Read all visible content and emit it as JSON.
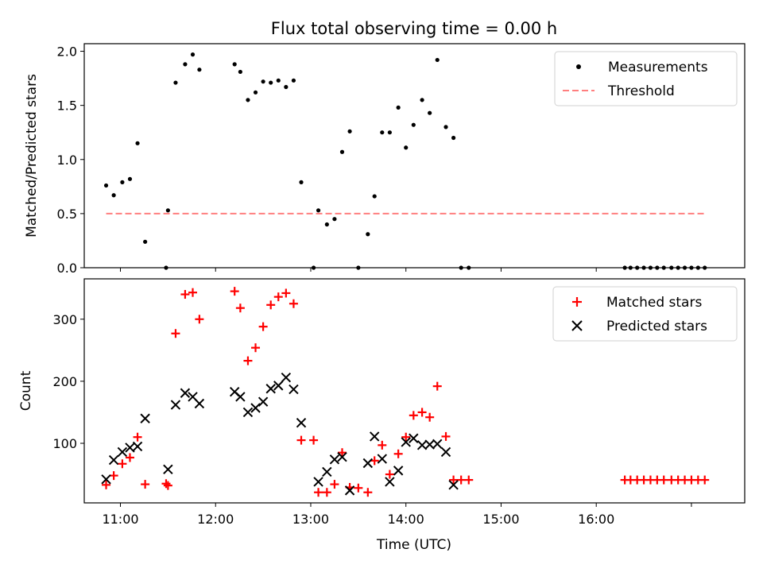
{
  "chart_data": [
    {
      "type": "scatter",
      "panel": "top",
      "title": "Flux total observing time = 0.00 h",
      "xlabel": "",
      "ylabel": "Matched/Predicted stars",
      "xlim": [
        10.62,
        17.56
      ],
      "ylim": [
        0,
        2.07
      ],
      "y_ticks": [
        0.0,
        0.5,
        1.0,
        1.5,
        2.0
      ],
      "y_tick_labels": [
        "0.0",
        "0.5",
        "1.0",
        "1.5",
        "2.0"
      ],
      "x_ticks": [
        11,
        12,
        13,
        14,
        15,
        16
      ],
      "legend_position": "upper right",
      "series": [
        {
          "name": "Measurements",
          "marker": "dot",
          "color": "#000000",
          "points": [
            [
              10.85,
              0.76
            ],
            [
              10.93,
              0.67
            ],
            [
              11.02,
              0.79
            ],
            [
              11.1,
              0.82
            ],
            [
              11.18,
              1.15
            ],
            [
              11.26,
              0.24
            ],
            [
              11.48,
              0.0
            ],
            [
              11.5,
              0.53
            ],
            [
              11.58,
              1.71
            ],
            [
              11.68,
              1.88
            ],
            [
              11.76,
              1.97
            ],
            [
              11.83,
              1.83
            ],
            [
              12.2,
              1.88
            ],
            [
              12.26,
              1.81
            ],
            [
              12.34,
              1.55
            ],
            [
              12.42,
              1.62
            ],
            [
              12.5,
              1.72
            ],
            [
              12.58,
              1.71
            ],
            [
              12.66,
              1.73
            ],
            [
              12.74,
              1.67
            ],
            [
              12.82,
              1.73
            ],
            [
              12.9,
              0.79
            ],
            [
              13.03,
              0.0
            ],
            [
              13.08,
              0.53
            ],
            [
              13.17,
              0.4
            ],
            [
              13.25,
              0.45
            ],
            [
              13.33,
              1.07
            ],
            [
              13.41,
              1.26
            ],
            [
              13.5,
              0.0
            ],
            [
              13.6,
              0.31
            ],
            [
              13.67,
              0.66
            ],
            [
              13.75,
              1.25
            ],
            [
              13.83,
              1.25
            ],
            [
              13.92,
              1.48
            ],
            [
              14.0,
              1.11
            ],
            [
              14.08,
              1.32
            ],
            [
              14.17,
              1.55
            ],
            [
              14.25,
              1.43
            ],
            [
              14.33,
              1.92
            ],
            [
              14.42,
              1.3
            ],
            [
              14.5,
              1.2
            ],
            [
              14.58,
              0.0
            ],
            [
              14.66,
              0.0
            ],
            [
              16.3,
              0.0
            ],
            [
              16.36,
              0.0
            ],
            [
              16.43,
              0.0
            ],
            [
              16.5,
              0.0
            ],
            [
              16.57,
              0.0
            ],
            [
              16.64,
              0.0
            ],
            [
              16.71,
              0.0
            ],
            [
              16.79,
              0.0
            ],
            [
              16.86,
              0.0
            ],
            [
              16.93,
              0.0
            ],
            [
              17.0,
              0.0
            ],
            [
              17.07,
              0.0
            ],
            [
              17.14,
              0.0
            ]
          ]
        },
        {
          "name": "Threshold",
          "type": "line",
          "style": "dashed",
          "color": "#ff7f7f",
          "points": [
            [
              10.85,
              0.5
            ],
            [
              17.15,
              0.5
            ]
          ]
        }
      ]
    },
    {
      "type": "scatter",
      "panel": "bottom",
      "title": "",
      "xlabel": "Time (UTC)",
      "ylabel": "Count",
      "xlim": [
        10.62,
        17.56
      ],
      "ylim": [
        4,
        365
      ],
      "y_ticks": [
        100,
        200,
        300
      ],
      "y_tick_labels": [
        "100",
        "200",
        "300"
      ],
      "x_ticks": [
        11,
        12,
        13,
        14,
        15,
        16,
        17
      ],
      "x_tick_labels": [
        "11:00",
        "12:00",
        "13:00",
        "14:00",
        "15:00",
        "16:00",
        ""
      ],
      "legend_position": "upper right",
      "series": [
        {
          "name": "Matched stars",
          "marker": "plus",
          "color": "#ff0000",
          "points": [
            [
              10.85,
              33
            ],
            [
              10.93,
              48
            ],
            [
              11.02,
              67
            ],
            [
              11.1,
              77
            ],
            [
              11.18,
              110
            ],
            [
              11.26,
              34
            ],
            [
              11.48,
              35
            ],
            [
              11.5,
              32
            ],
            [
              11.58,
              277
            ],
            [
              11.68,
              340
            ],
            [
              11.76,
              343
            ],
            [
              11.83,
              300
            ],
            [
              12.2,
              345
            ],
            [
              12.26,
              318
            ],
            [
              12.34,
              233
            ],
            [
              12.42,
              254
            ],
            [
              12.5,
              288
            ],
            [
              12.58,
              323
            ],
            [
              12.66,
              336
            ],
            [
              12.74,
              342
            ],
            [
              12.82,
              325
            ],
            [
              12.9,
              105
            ],
            [
              13.03,
              105
            ],
            [
              13.08,
              21
            ],
            [
              13.17,
              21
            ],
            [
              13.25,
              34
            ],
            [
              13.33,
              85
            ],
            [
              13.41,
              29
            ],
            [
              13.5,
              28
            ],
            [
              13.6,
              21
            ],
            [
              13.67,
              72
            ],
            [
              13.75,
              97
            ],
            [
              13.83,
              50
            ],
            [
              13.92,
              83
            ],
            [
              14.0,
              110
            ],
            [
              14.08,
              145
            ],
            [
              14.17,
              150
            ],
            [
              14.25,
              142
            ],
            [
              14.33,
              192
            ],
            [
              14.42,
              111
            ],
            [
              14.5,
              41
            ],
            [
              14.58,
              41
            ],
            [
              14.66,
              41
            ],
            [
              16.3,
              41
            ],
            [
              16.36,
              41
            ],
            [
              16.43,
              41
            ],
            [
              16.5,
              41
            ],
            [
              16.57,
              41
            ],
            [
              16.64,
              41
            ],
            [
              16.71,
              41
            ],
            [
              16.79,
              41
            ],
            [
              16.86,
              41
            ],
            [
              16.93,
              41
            ],
            [
              17.0,
              41
            ],
            [
              17.07,
              41
            ],
            [
              17.14,
              41
            ]
          ]
        },
        {
          "name": "Predicted stars",
          "marker": "x",
          "color": "#000000",
          "points": [
            [
              10.85,
              42
            ],
            [
              10.93,
              73
            ],
            [
              11.02,
              86
            ],
            [
              11.1,
              93
            ],
            [
              11.18,
              95
            ],
            [
              11.26,
              140
            ],
            [
              11.5,
              58
            ],
            [
              11.58,
              162
            ],
            [
              11.68,
              181
            ],
            [
              11.76,
              175
            ],
            [
              11.83,
              164
            ],
            [
              12.2,
              183
            ],
            [
              12.26,
              175
            ],
            [
              12.34,
              150
            ],
            [
              12.42,
              157
            ],
            [
              12.5,
              167
            ],
            [
              12.58,
              188
            ],
            [
              12.66,
              193
            ],
            [
              12.74,
              206
            ],
            [
              12.82,
              187
            ],
            [
              12.9,
              133
            ],
            [
              13.08,
              38
            ],
            [
              13.17,
              54
            ],
            [
              13.25,
              74
            ],
            [
              13.33,
              78
            ],
            [
              13.41,
              24
            ],
            [
              13.6,
              68
            ],
            [
              13.67,
              111
            ],
            [
              13.75,
              75
            ],
            [
              13.83,
              38
            ],
            [
              13.92,
              56
            ],
            [
              14.0,
              102
            ],
            [
              14.08,
              108
            ],
            [
              14.17,
              97
            ],
            [
              14.25,
              98
            ],
            [
              14.33,
              99
            ],
            [
              14.42,
              86
            ],
            [
              14.5,
              33
            ]
          ]
        }
      ]
    }
  ]
}
